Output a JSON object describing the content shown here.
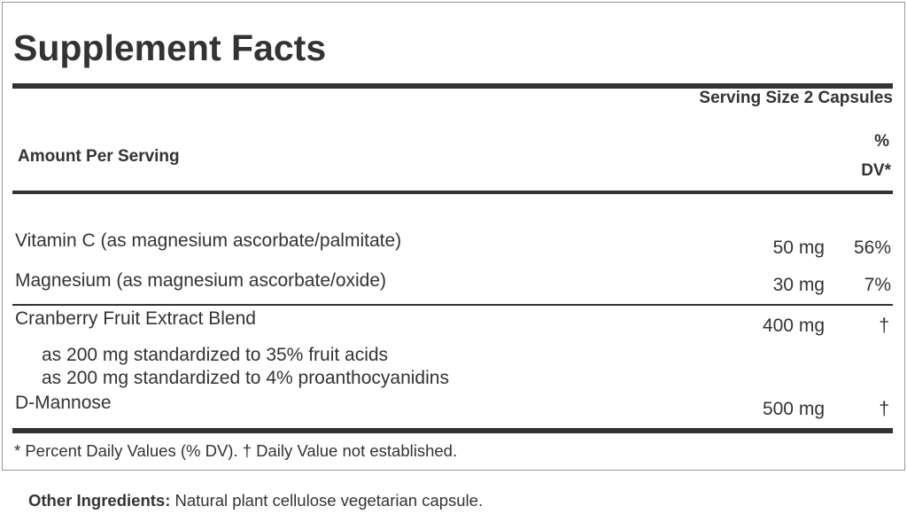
{
  "title": "Supplement Facts",
  "serving_size": "Serving Size 2 Capsules",
  "header": {
    "amount_per_serving": "Amount Per Serving",
    "dv_line1": "%",
    "dv_line2": "DV*"
  },
  "rows": [
    {
      "name": "Vitamin C (as magnesium ascorbate/palmitate)",
      "amount": "50 mg",
      "dv": "56%"
    },
    {
      "name": "Magnesium (as magnesium ascorbate/oxide)",
      "amount": "30 mg",
      "dv": "7%"
    },
    {
      "name": "Cranberry Fruit Extract Blend",
      "amount": "400 mg",
      "dv": "†",
      "sub": [
        "as 200 mg standardized to 35% fruit acids",
        "as 200 mg standardized to 4% proanthocyanidins"
      ]
    },
    {
      "name": "D-Mannose",
      "amount": "500 mg",
      "dv": "†"
    }
  ],
  "footnote": "* Percent Daily Values (% DV). † Daily Value not established.",
  "other_ingredients": {
    "label": "Other Ingredients:",
    "text": " Natural plant cellulose vegetarian capsule."
  }
}
